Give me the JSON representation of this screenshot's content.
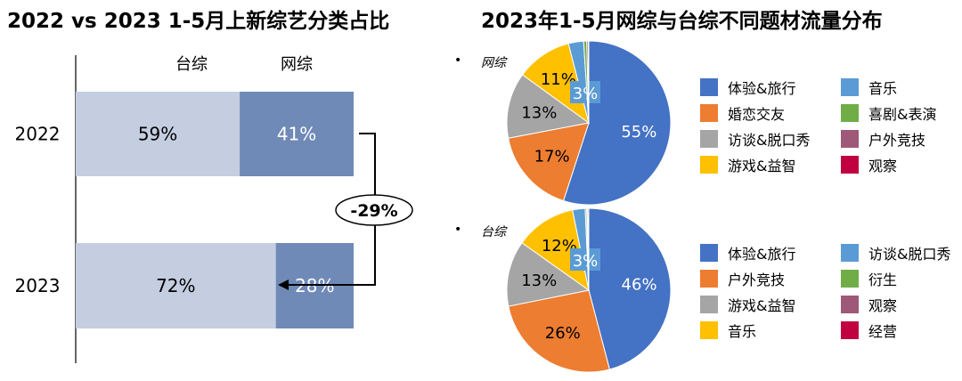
{
  "left_title": "2022 vs 2023 1-5月上新综艺分类占比",
  "right_title": "2023年1-5月网综与台综不同题材流量分布",
  "chart_data": [
    {
      "type": "bar",
      "orientation": "horizontal",
      "stacked": true,
      "title": "2022 vs 2023 1-5月上新综艺分类占比",
      "categories": [
        "2022",
        "2023"
      ],
      "series": [
        {
          "name": "台综",
          "values": [
            59,
            72
          ],
          "labels": [
            "59%",
            "72%"
          ],
          "color": "#c5cee0"
        },
        {
          "name": "网综",
          "values": [
            41,
            28
          ],
          "labels": [
            "41%",
            "28%"
          ],
          "color": "#6f8ab7"
        }
      ],
      "annotation": "-29%"
    },
    {
      "type": "pie",
      "title": "网综",
      "slices": [
        {
          "label": "体验&旅行",
          "value": 55,
          "text": "55%",
          "color": "#4472c4"
        },
        {
          "label": "婚恋交友",
          "value": 17,
          "text": "17%",
          "color": "#ed7d31"
        },
        {
          "label": "访谈&脱口秀",
          "value": 13,
          "text": "13%",
          "color": "#a5a5a5"
        },
        {
          "label": "游戏&益智",
          "value": 11,
          "text": "11%",
          "color": "#ffc000"
        },
        {
          "label": "音乐",
          "value": 3,
          "text": "3%",
          "color": "#5b9bd5"
        },
        {
          "label": "喜剧&表演",
          "value": 0.6,
          "text": "",
          "color": "#70ad47"
        },
        {
          "label": "户外竞技",
          "value": 0.3,
          "text": "",
          "color": "#9e5878"
        },
        {
          "label": "观察",
          "value": 0.1,
          "text": "",
          "color": "#c00040"
        }
      ]
    },
    {
      "type": "pie",
      "title": "台综",
      "slices": [
        {
          "label": "体验&旅行",
          "value": 46,
          "text": "46%",
          "color": "#4472c4"
        },
        {
          "label": "户外竞技",
          "value": 26,
          "text": "26%",
          "color": "#ed7d31"
        },
        {
          "label": "游戏&益智",
          "value": 13,
          "text": "13%",
          "color": "#a5a5a5"
        },
        {
          "label": "音乐",
          "value": 12,
          "text": "12%",
          "color": "#ffc000"
        },
        {
          "label": "访谈&脱口秀",
          "value": 2.5,
          "text": "3%",
          "color": "#5b9bd5"
        },
        {
          "label": "衍生",
          "value": 0.3,
          "text": "",
          "color": "#70ad47"
        },
        {
          "label": "观察",
          "value": 0.2,
          "text": "",
          "color": "#9e5878"
        },
        {
          "label": "经营",
          "value": 0.2,
          "text": "",
          "color": "#c00040"
        }
      ]
    }
  ],
  "bullet": "•"
}
